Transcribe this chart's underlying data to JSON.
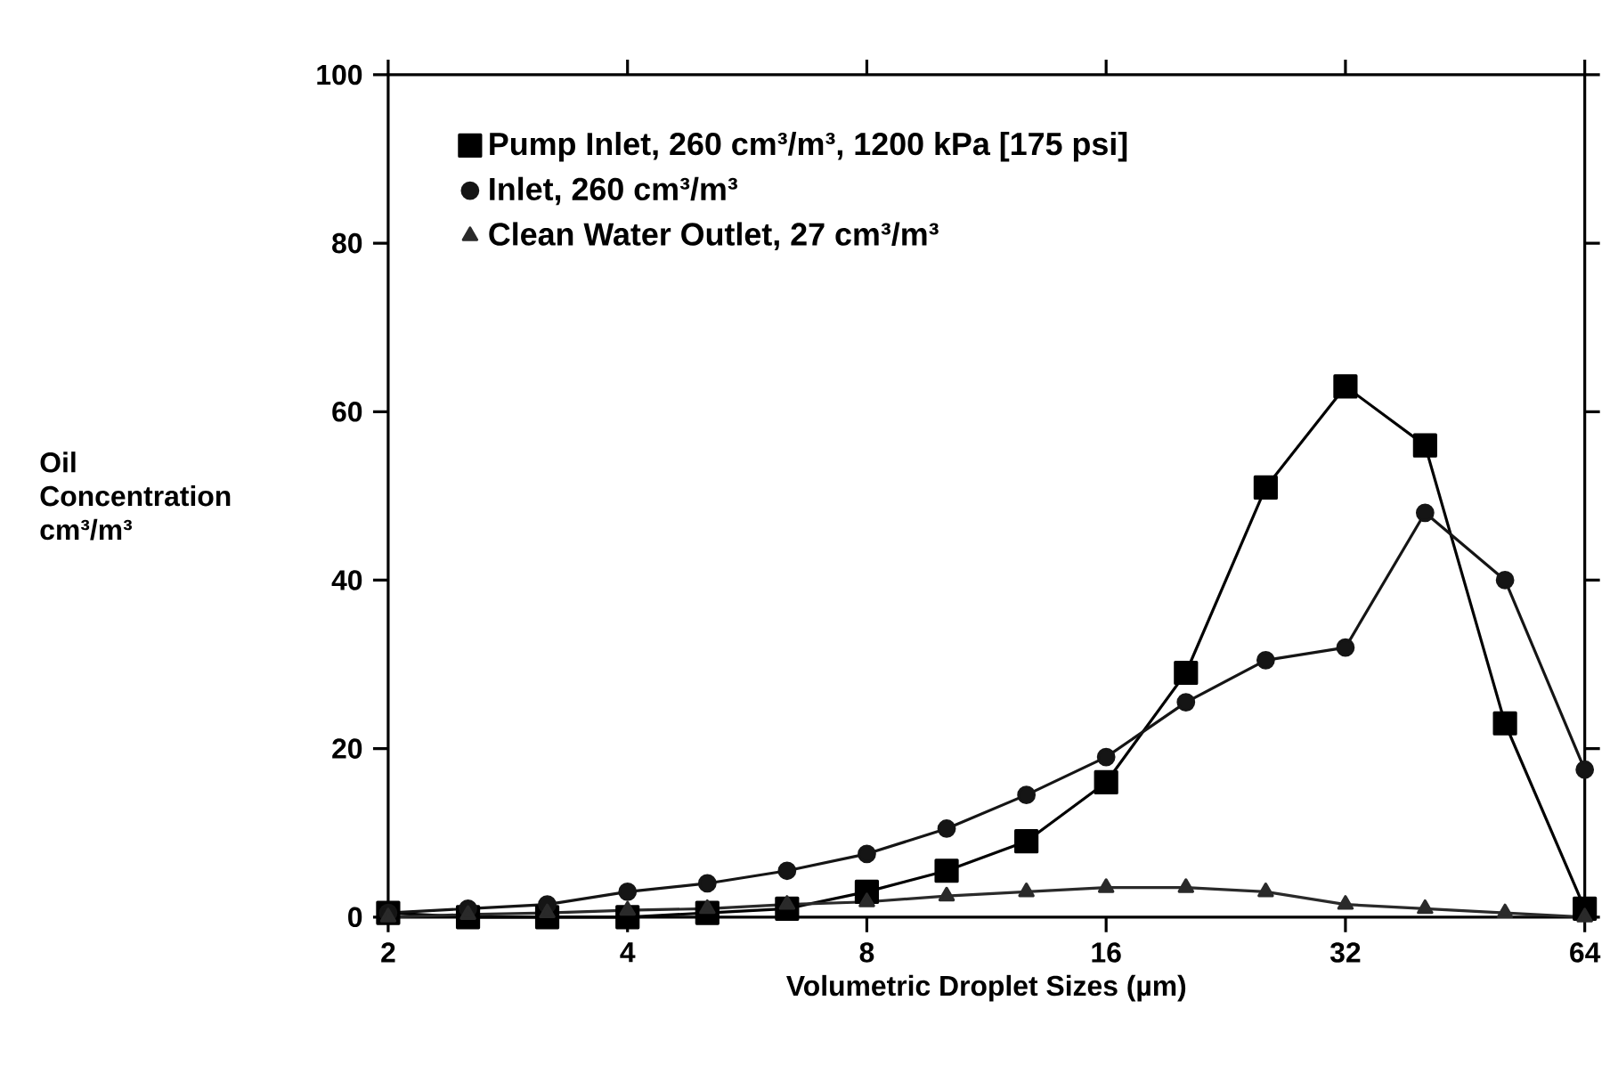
{
  "chart_data": {
    "type": "line",
    "xlabel": "Volumetric Droplet Sizes (µm)",
    "ylabel": "Oil Concentration cm³/m³",
    "log": "x",
    "x": [
      2,
      2.52,
      3.17,
      4,
      5.04,
      6.35,
      8,
      10.08,
      12.7,
      16,
      20.16,
      25.4,
      32,
      40.3,
      50.8,
      64
    ],
    "xlim": [
      2,
      64
    ],
    "xticks": [
      2,
      4,
      8,
      16,
      32,
      64
    ],
    "ylim": [
      0,
      100
    ],
    "yticks": [
      0,
      20,
      40,
      60,
      80,
      100
    ],
    "grid": false,
    "legend": "top left",
    "line_style": "solid",
    "series": [
      {
        "name": "Pump Inlet, 260 cm³/m³, 1200 kPa [175 psi]",
        "color": "#000000",
        "marker": "square",
        "values": [
          0.5,
          0,
          0,
          0,
          0.5,
          1,
          3,
          5.5,
          9,
          16,
          29,
          51,
          63,
          56,
          23,
          1
        ]
      },
      {
        "name": "Inlet, 260 cm³/m³",
        "color": "#151515",
        "marker": "circle",
        "values": [
          0.5,
          1,
          1.5,
          3,
          4,
          5.5,
          7.5,
          10.5,
          14.5,
          19,
          25.5,
          30.5,
          32,
          48,
          40,
          17.5
        ]
      },
      {
        "name": "Clean Water Outlet, 27 cm³/m³",
        "color": "#2a2a2a",
        "marker": "triangle",
        "values": [
          0,
          0.3,
          0.5,
          0.8,
          1,
          1.5,
          1.8,
          2.5,
          3,
          3.5,
          3.5,
          3,
          1.5,
          1,
          0.5,
          0
        ]
      }
    ]
  }
}
